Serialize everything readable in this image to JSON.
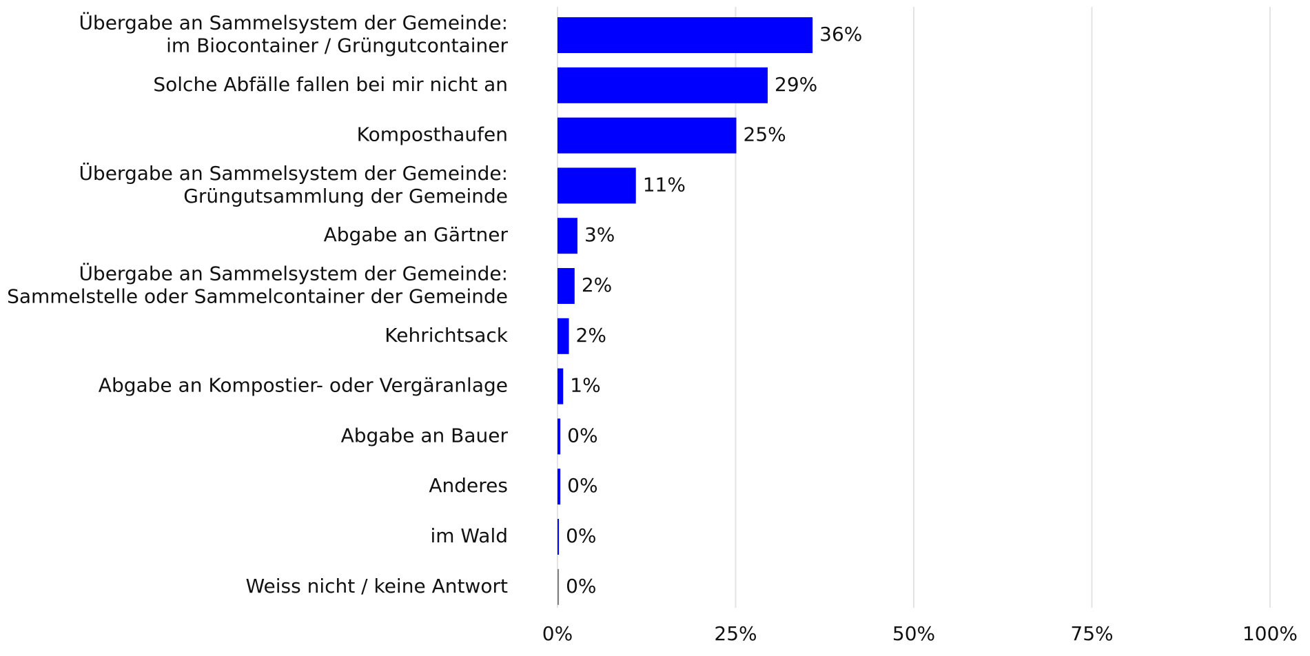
{
  "chart_data": {
    "type": "bar",
    "orientation": "horizontal",
    "categories": [
      [
        "Übergabe an Sammelsystem der Gemeinde:",
        "im Biocontainer / Grüngutcontainer"
      ],
      [
        "Solche Abfälle fallen bei mir nicht an"
      ],
      [
        "Komposthaufen"
      ],
      [
        "Übergabe an Sammelsystem der Gemeinde:",
        "Grüngutsammlung der Gemeinde"
      ],
      [
        "Abgabe an Gärtner"
      ],
      [
        "Übergabe an Sammelsystem der Gemeinde:",
        "Sammelstelle oder Sammelcontainer der Gemeinde"
      ],
      [
        "Kehrichtsack"
      ],
      [
        "Abgabe an Kompostier- oder Vergäranlage"
      ],
      [
        "Abgabe an Bauer"
      ],
      [
        "Anderes"
      ],
      [
        "im Wald"
      ],
      [
        "Weiss nicht / keine Antwort"
      ]
    ],
    "values": [
      35.8,
      29.5,
      25.1,
      11.0,
      2.8,
      2.4,
      1.6,
      0.8,
      0.4,
      0.4,
      0.2,
      0.2
    ],
    "value_labels": [
      "36%",
      "29%",
      "25%",
      "11%",
      "3%",
      "2%",
      "2%",
      "1%",
      "0%",
      "0%",
      "0%",
      "0%"
    ],
    "colors": [
      "#0000ff",
      "#0000ff",
      "#0000ff",
      "#0000ff",
      "#0000ff",
      "#0000ff",
      "#0000ff",
      "#0000ff",
      "#0000ff",
      "#0000ff",
      "#0000ff",
      "#808080"
    ],
    "xlim": [
      0,
      100
    ],
    "xticks": [
      {
        "value": 0,
        "label": "0%"
      },
      {
        "value": 25,
        "label": "25%"
      },
      {
        "value": 50,
        "label": "50%"
      },
      {
        "value": 75,
        "label": "75%"
      },
      {
        "value": 100,
        "label": "100%"
      }
    ],
    "grid": true
  }
}
